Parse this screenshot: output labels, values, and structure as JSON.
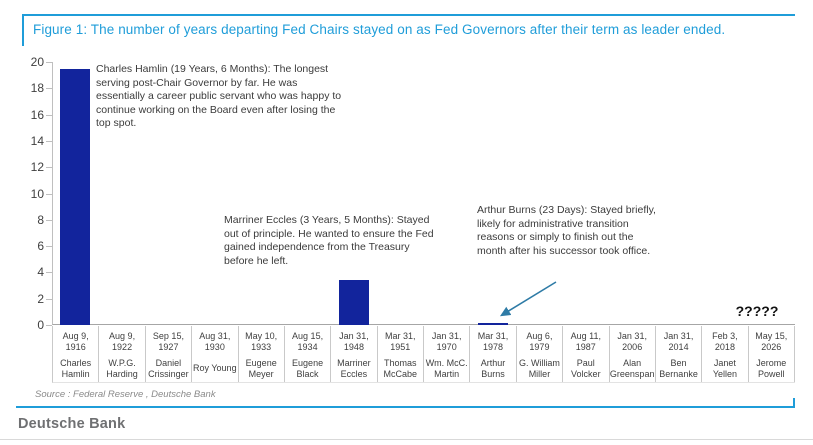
{
  "figure": {
    "title": "Figure 1: The number of years departing Fed Chairs stayed on as Fed Governors after their term as leader ended."
  },
  "chart_data": {
    "type": "bar",
    "title": "Figure 1: The number of years departing Fed Chairs stayed on as Fed Governors after their term as leader ended.",
    "xlabel": "",
    "ylabel": "",
    "ylim": [
      0,
      20
    ],
    "ytick_step": 2,
    "grid": false,
    "legend": false,
    "bar_color": "#12249c",
    "categories": [
      {
        "date": "Aug 9,\n1916",
        "name": "Charles\nHamlin",
        "value": 19.5
      },
      {
        "date": "Aug 9,\n1922",
        "name": "W.P.G.\nHarding",
        "value": 0
      },
      {
        "date": "Sep 15,\n1927",
        "name": "Daniel\nCrissinger",
        "value": 0
      },
      {
        "date": "Aug 31,\n1930",
        "name": "Roy Young",
        "value": 0
      },
      {
        "date": "May 10,\n1933",
        "name": "Eugene\nMeyer",
        "value": 0
      },
      {
        "date": "Aug 15,\n1934",
        "name": "Eugene\nBlack",
        "value": 0
      },
      {
        "date": "Jan 31,\n1948",
        "name": "Marriner\nEccles",
        "value": 3.42
      },
      {
        "date": "Mar 31,\n1951",
        "name": "Thomas\nMcCabe",
        "value": 0
      },
      {
        "date": "Jan 31,\n1970",
        "name": "Wm. McC.\nMartin",
        "value": 0
      },
      {
        "date": "Mar 31,\n1978",
        "name": "Arthur\nBurns",
        "value": 0.06
      },
      {
        "date": "Aug 6,\n1979",
        "name": "G. William\nMiller",
        "value": 0
      },
      {
        "date": "Aug 11,\n1987",
        "name": "Paul\nVolcker",
        "value": 0
      },
      {
        "date": "Jan 31,\n2006",
        "name": "Alan\nGreenspan",
        "value": 0
      },
      {
        "date": "Jan 31,\n2014",
        "name": "Ben\nBernanke",
        "value": 0
      },
      {
        "date": "Feb 3, 2018",
        "name": "Janet\nYellen",
        "value": 0
      },
      {
        "date": "May 15,\n2026",
        "name": "Jerome\nPowell",
        "value": null
      }
    ],
    "unknown_value_label": "?????",
    "annotations": [
      {
        "id": "hamlin",
        "text": "Charles Hamlin (19 Years, 6 Months): The longest\nserving post-Chair Governor by far. He was\nessentially a career public servant who was happy to\ncontinue working on the Board even after losing the\ntop spot."
      },
      {
        "id": "eccles",
        "text": "Marriner Eccles (3 Years, 5 Months): Stayed\nout of principle. He wanted to ensure the Fed\ngained independence from the Treasury\nbefore he left."
      },
      {
        "id": "burns",
        "text": "Arthur Burns (23 Days): Stayed briefly,\nlikely for administrative transition\nreasons or simply to finish out the\nmonth after his successor took office."
      }
    ]
  },
  "source_note": "Source : Federal Reserve , Deutsche Bank",
  "branding": {
    "wordmark": "Deutsche Bank"
  },
  "colors": {
    "bar": "#12249c",
    "accent_blue": "#1f9dd9",
    "arrow": "#2e7ba6"
  }
}
